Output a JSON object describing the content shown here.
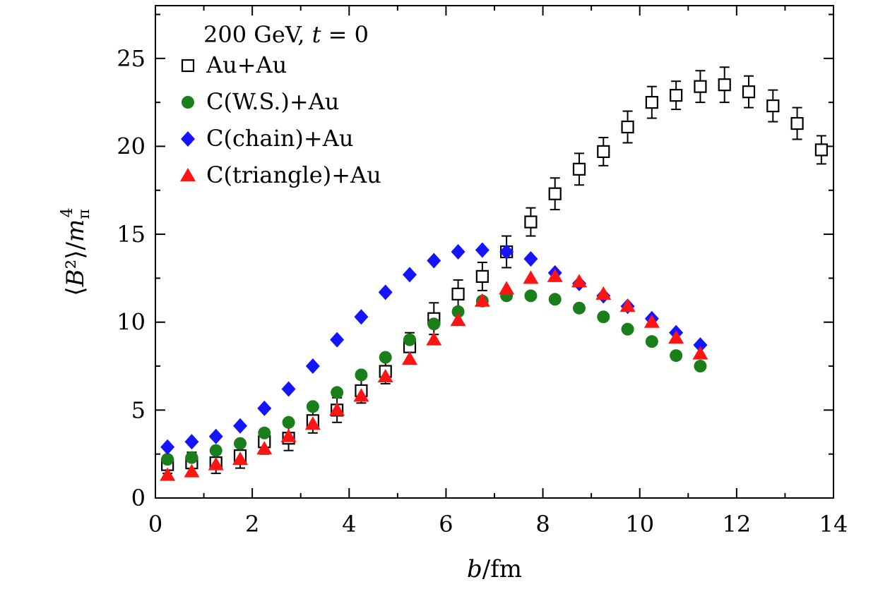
{
  "chart_data": {
    "type": "scatter",
    "title": "",
    "legend_title": "200 GeV, t = 0",
    "legend_position": "top-left",
    "xlabel": "b/fm",
    "ylabel": "⟨B²⟩/m_π⁴",
    "xlim": [
      0,
      14
    ],
    "ylim": [
      0,
      28
    ],
    "xticks": [
      0,
      2,
      4,
      6,
      8,
      10,
      12,
      14
    ],
    "xtick_labels": [
      "0",
      "2",
      "4",
      "6",
      "8",
      "10",
      "12",
      "14"
    ],
    "yticks": [
      0,
      5,
      10,
      15,
      20,
      25
    ],
    "ytick_labels": [
      "0",
      "5",
      "10",
      "15",
      "20",
      "25"
    ],
    "grid": false,
    "series": [
      {
        "name": "Au+Au",
        "marker": "open-square",
        "color": "#000000",
        "x": [
          0.25,
          0.75,
          1.25,
          1.75,
          2.25,
          2.75,
          3.25,
          3.75,
          4.25,
          4.75,
          5.25,
          5.75,
          6.25,
          6.75,
          7.25,
          7.75,
          8.25,
          8.75,
          9.25,
          9.75,
          10.25,
          10.75,
          11.25,
          11.75,
          12.25,
          12.75,
          13.25,
          13.75
        ],
        "y": [
          1.9,
          2.0,
          2.0,
          2.4,
          3.2,
          3.4,
          4.4,
          5.0,
          6.1,
          7.2,
          8.6,
          10.2,
          11.6,
          12.6,
          14.0,
          15.7,
          17.3,
          18.7,
          19.7,
          21.1,
          22.5,
          22.9,
          23.4,
          23.5,
          23.1,
          22.3,
          21.3,
          19.8
        ],
        "err": [
          0.5,
          0.6,
          0.6,
          0.7,
          0.7,
          0.7,
          0.7,
          0.7,
          0.7,
          0.7,
          0.8,
          0.9,
          0.8,
          0.8,
          0.9,
          0.8,
          0.9,
          0.9,
          0.8,
          0.9,
          0.9,
          0.8,
          0.9,
          1.0,
          0.9,
          0.9,
          0.9,
          0.8
        ]
      },
      {
        "name": "C(W.S.)+Au",
        "marker": "filled-circle",
        "color": "#1a7f1a",
        "x": [
          0.25,
          0.75,
          1.25,
          1.75,
          2.25,
          2.75,
          3.25,
          3.75,
          4.25,
          4.75,
          5.25,
          5.75,
          6.25,
          6.75,
          7.25,
          7.75,
          8.25,
          8.75,
          9.25,
          9.75,
          10.25,
          10.75,
          11.25
        ],
        "y": [
          2.2,
          2.3,
          2.7,
          3.1,
          3.7,
          4.3,
          5.2,
          6.0,
          7.0,
          8.0,
          9.0,
          9.9,
          10.6,
          11.2,
          11.5,
          11.5,
          11.3,
          10.8,
          10.3,
          9.6,
          8.9,
          8.1,
          7.5
        ]
      },
      {
        "name": "C(chain)+Au",
        "marker": "filled-diamond",
        "color": "#1414ff",
        "x": [
          0.25,
          0.75,
          1.25,
          1.75,
          2.25,
          2.75,
          3.25,
          3.75,
          4.25,
          4.75,
          5.25,
          5.75,
          6.25,
          6.75,
          7.25,
          7.75,
          8.25,
          8.75,
          9.25,
          9.75,
          10.25,
          10.75,
          11.25
        ],
        "y": [
          2.9,
          3.2,
          3.5,
          4.1,
          5.1,
          6.2,
          7.5,
          9.0,
          10.3,
          11.7,
          12.7,
          13.5,
          14.0,
          14.1,
          14.0,
          13.6,
          12.8,
          12.2,
          11.5,
          10.9,
          10.2,
          9.4,
          8.7
        ]
      },
      {
        "name": "C(triangle)+Au",
        "marker": "filled-triangle",
        "color": "#ff1414",
        "x": [
          0.25,
          0.75,
          1.25,
          1.75,
          2.25,
          2.75,
          3.25,
          3.75,
          4.25,
          4.75,
          5.25,
          5.75,
          6.25,
          6.75,
          7.25,
          7.75,
          8.25,
          8.75,
          9.25,
          9.75,
          10.25,
          10.75,
          11.25
        ],
        "y": [
          1.3,
          1.5,
          1.9,
          2.2,
          2.8,
          3.5,
          4.2,
          5.0,
          5.8,
          6.9,
          7.9,
          9.0,
          10.1,
          11.2,
          11.9,
          12.5,
          12.6,
          12.3,
          11.6,
          10.9,
          10.0,
          9.1,
          8.2
        ]
      }
    ]
  }
}
